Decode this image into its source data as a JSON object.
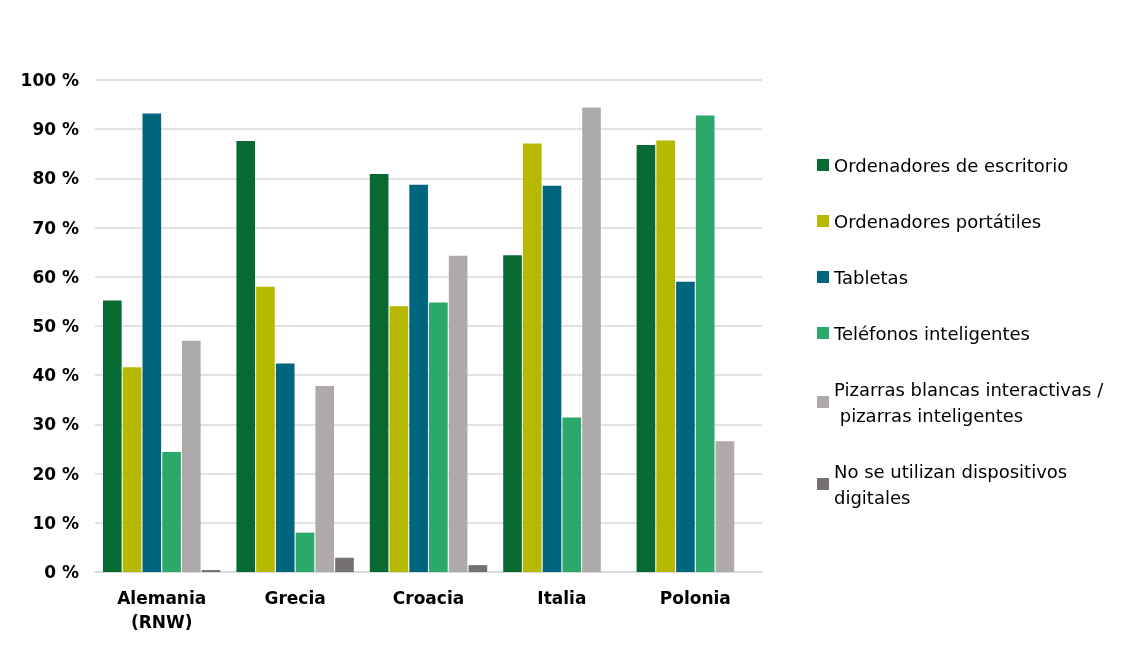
{
  "chart_data": {
    "type": "bar",
    "categories": [
      "Alemania\n(RNW)",
      "Grecia",
      "Croacia",
      "Italia",
      "Polonia"
    ],
    "series": [
      {
        "name": "Ordenadores de escritorio",
        "color": "#076a33",
        "values": [
          55.2,
          87.6,
          80.9,
          64.4,
          86.8
        ]
      },
      {
        "name": "Ordenadores portátiles",
        "color": "#b7b800",
        "values": [
          41.6,
          58.0,
          54.0,
          87.1,
          87.7
        ]
      },
      {
        "name": "Tabletas",
        "color": "#00667e",
        "values": [
          93.2,
          42.4,
          78.7,
          78.5,
          59.0
        ]
      },
      {
        "name": "Teléfonos inteligentes",
        "color": "#2aa96a",
        "values": [
          24.4,
          8.0,
          54.8,
          31.4,
          92.8
        ]
      },
      {
        "name": "Pizarras blancas interactivas / pizarras inteligentes",
        "color": "#aeaaa9",
        "values": [
          47.0,
          37.8,
          64.3,
          94.4,
          26.6
        ]
      },
      {
        "name": "No se utilizan dispositivos digitales",
        "color": "#767171",
        "values": [
          0.4,
          2.9,
          1.4,
          null,
          null
        ]
      }
    ],
    "ylim": [
      0,
      100
    ],
    "yticks": [
      {
        "value": 0,
        "label": "0 %"
      },
      {
        "value": 10,
        "label": "10 %"
      },
      {
        "value": 20,
        "label": "20 %"
      },
      {
        "value": 30,
        "label": "30 %"
      },
      {
        "value": 40,
        "label": "40 %"
      },
      {
        "value": 50,
        "label": "50 %"
      },
      {
        "value": 60,
        "label": "60 %"
      },
      {
        "value": 70,
        "label": "70 %"
      },
      {
        "value": 80,
        "label": "80 %"
      },
      {
        "value": 90,
        "label": "90 %"
      },
      {
        "value": 100,
        "label": "100 %"
      }
    ],
    "grid": "y",
    "legend": "right"
  }
}
